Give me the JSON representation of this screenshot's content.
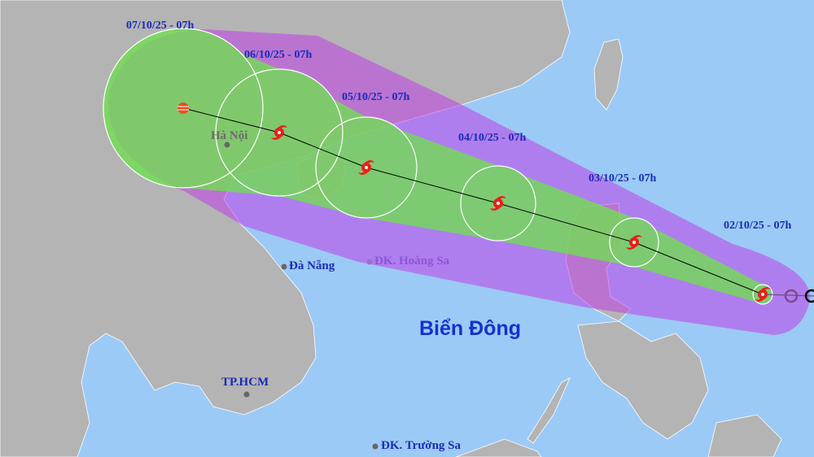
{
  "colors": {
    "sea": "#9ccaf6",
    "land": "#b4b4b4",
    "risk_area": "#c896ec",
    "strong_wind_area": "#7fe06e",
    "storm_icon": "#e8201a",
    "label": "#1a2bb8"
  },
  "forecast_points": [
    {
      "label": "02/10/25 - 07h",
      "icon": "typhoon-icon"
    },
    {
      "label": "03/10/25 - 07h",
      "icon": "typhoon-icon"
    },
    {
      "label": "04/10/25 - 07h",
      "icon": "typhoon-icon"
    },
    {
      "label": "05/10/25 - 07h",
      "icon": "typhoon-icon"
    },
    {
      "label": "06/10/25 - 07h",
      "icon": "typhoon-icon"
    },
    {
      "label": "07/10/25 - 07h",
      "icon": "tropical-depression-icon"
    }
  ],
  "places": {
    "hanoi": "Hà Nội",
    "danang": "Đà Nẵng",
    "hoangsa": "ĐK. Hoàng Sa",
    "hcm": "TP.HCM",
    "truongsa": "ĐK. Trường Sa",
    "sea": "Biển Đông"
  }
}
